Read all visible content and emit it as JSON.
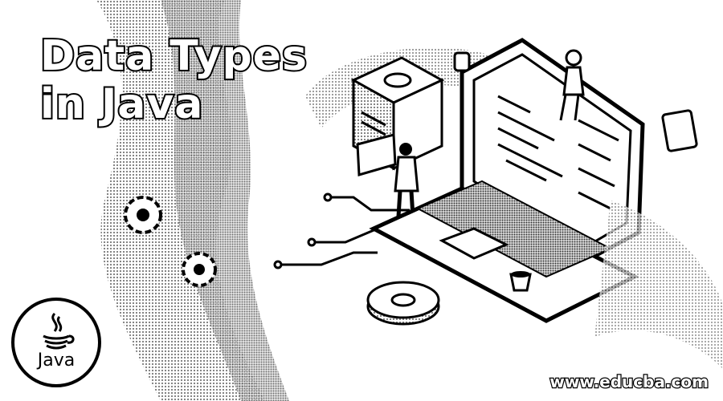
{
  "banner": {
    "title_line1": "Data Types",
    "title_line2": "in Java",
    "logo_text": "Java",
    "website": "www.educba.com"
  },
  "icons": [
    "java-logo-icon",
    "laptop-icon",
    "server-icon",
    "person-icon",
    "gear-icon",
    "router-icon",
    "cup-icon"
  ],
  "colors": {
    "ink": "#000000",
    "paper": "#ffffff",
    "halftone": "#9a9a9a"
  }
}
